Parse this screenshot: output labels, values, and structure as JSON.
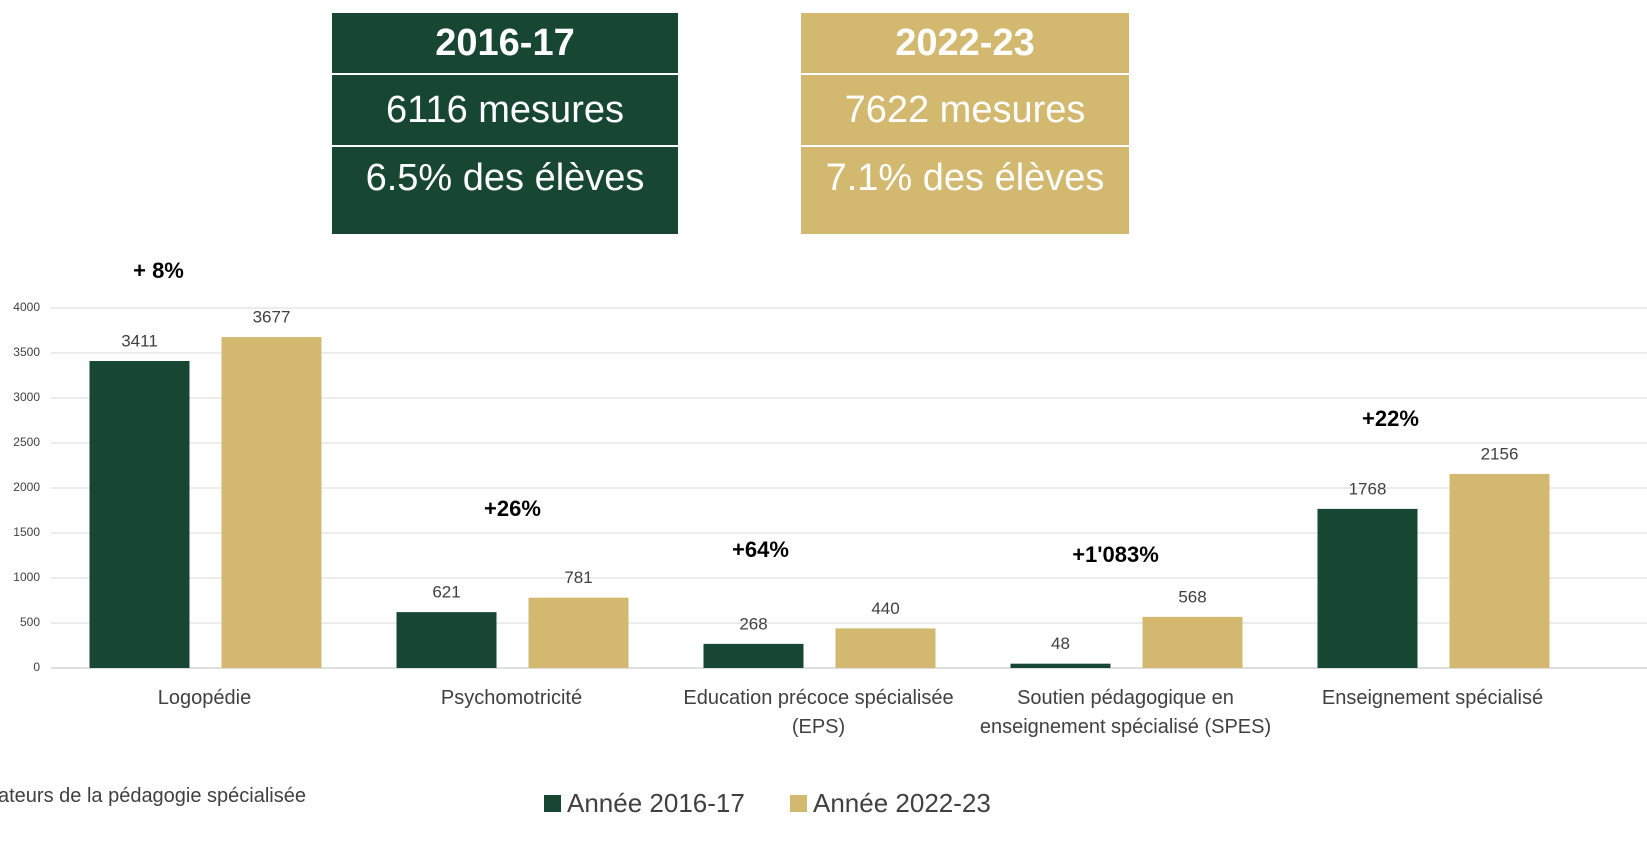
{
  "summary": [
    {
      "year": "2016-17",
      "measures": "6116 mesures",
      "share": "6.5% des élèves",
      "color": "#174733"
    },
    {
      "year": "2022-23",
      "measures": "7622 mesures",
      "share": "7.1% des élèves",
      "color": "#d3b96f"
    }
  ],
  "chart_data": {
    "type": "bar",
    "categories": [
      "Logopédie",
      "Psychomotricité",
      "Education précoce spécialisée (EPS)",
      "Soutien pédagogique en enseignement spécialisé (SPES)",
      "Enseignement spécialisé"
    ],
    "series": [
      {
        "name": "Année 2016-17",
        "color": "#174733",
        "values": [
          3411,
          621,
          268,
          48,
          1768
        ]
      },
      {
        "name": "Année 2022-23",
        "color": "#d3b96f",
        "values": [
          3677,
          781,
          440,
          568,
          2156
        ]
      }
    ],
    "annotations": [
      "+ 8%",
      "+26%",
      "+64%",
      "+1'083%",
      "+22%"
    ],
    "ylim": [
      0,
      4000
    ],
    "yticks": [
      0,
      500,
      1000,
      1500,
      2000,
      2500,
      3000,
      3500,
      4000
    ],
    "grid": true,
    "source": "ateurs de la pédagogie spécialisée"
  }
}
